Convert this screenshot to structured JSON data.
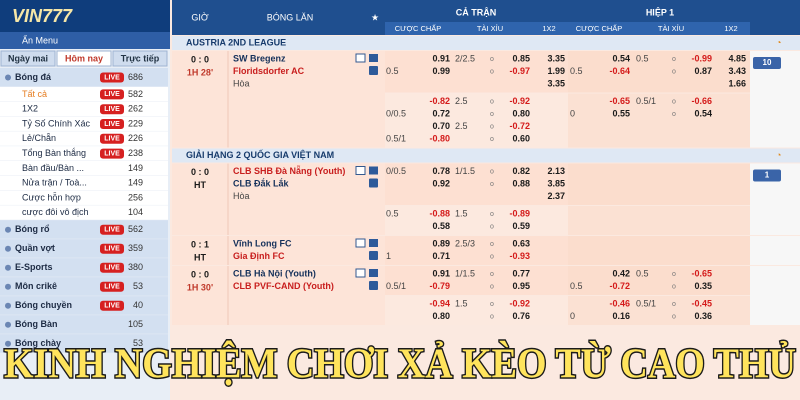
{
  "sidebar": {
    "logo": "VIN777",
    "hide_menu": "Ẩn Menu",
    "tabs": [
      "Ngày mai",
      "Hôm nay",
      "Trực tiếp"
    ],
    "active_tab": 1,
    "items": [
      {
        "label": "Bóng đá",
        "badge": "LIVE",
        "count": 686,
        "main": true
      },
      {
        "label": "Tất cả",
        "badge": "LIVE",
        "count": 582,
        "main": false,
        "active": true
      },
      {
        "label": "1X2",
        "badge": "LIVE",
        "count": 262,
        "main": false
      },
      {
        "label": "Tỷ Số Chính Xác",
        "badge": "LIVE",
        "count": 229,
        "main": false
      },
      {
        "label": "Lẻ/Chẵn",
        "badge": "LIVE",
        "count": 226,
        "main": false
      },
      {
        "label": "Tổng Bàn thắng",
        "badge": "LIVE",
        "count": 238,
        "main": false
      },
      {
        "label": "Bàn đầu/Bàn ...",
        "count": 149,
        "main": false
      },
      {
        "label": "Nửa trận / Toà...",
        "count": 149,
        "main": false
      },
      {
        "label": "Cược hỗn hợp",
        "count": 256,
        "main": false
      },
      {
        "label": "cược đôi vô địch",
        "count": 104,
        "main": false
      },
      {
        "label": "Bóng rổ",
        "badge": "LIVE",
        "count": 562,
        "main": true
      },
      {
        "label": "Quần vợt",
        "badge": "LIVE",
        "count": 359,
        "main": true
      },
      {
        "label": "E-Sports",
        "badge": "LIVE",
        "count": 380,
        "main": true
      },
      {
        "label": "Môn crikê",
        "badge": "LIVE",
        "count": 53,
        "main": true
      },
      {
        "label": "Bóng chuyền",
        "badge": "LIVE",
        "count": 40,
        "main": true
      },
      {
        "label": "Bóng Bàn",
        "count": 105,
        "main": true
      },
      {
        "label": "Bóng chày",
        "count": 53,
        "main": true
      }
    ]
  },
  "table": {
    "headers": {
      "time": "GIỜ",
      "match": "BÓNG LĂN",
      "full": "CẢ TRẬN",
      "half": "HIỆP 1",
      "sub": [
        "CƯỢC CHẤP",
        "TÀI XỈU",
        "1X2"
      ]
    },
    "sections": [
      {
        "league": "AUSTRIA 2ND LEAGUE",
        "matches": [
          {
            "score": "0 : 0",
            "time": "1H 28'",
            "teams": [
              "SW Bregenz",
              "Floridsdorfer AC",
              "Hòa"
            ],
            "favorite": 1,
            "more": "10",
            "blocks": [
              [
                [
                  null,
                  "0.91",
                  "2/2.5",
                  "0.85",
                  "3.35",
                  null,
                  "0.54",
                  "0.5",
                  "-0.99",
                  "4.85"
                ],
                [
                  "0.5",
                  "0.99",
                  null,
                  "-0.97",
                  "1.99",
                  "0.5",
                  "-0.64",
                  null,
                  "0.87",
                  "3.43"
                ],
                [
                  null,
                  null,
                  null,
                  null,
                  "3.35",
                  null,
                  null,
                  null,
                  null,
                  "1.66"
                ]
              ],
              [
                [
                  null,
                  "-0.82",
                  "2.5",
                  "-0.92",
                  null,
                  null,
                  "-0.65",
                  "0.5/1",
                  "-0.66",
                  null
                ],
                [
                  "0/0.5",
                  "0.72",
                  null,
                  "0.80",
                  null,
                  "0",
                  "0.55",
                  null,
                  "0.54",
                  null
                ],
                [
                  null,
                  "0.70",
                  "2.5",
                  "-0.72",
                  null,
                  null,
                  null,
                  null,
                  null,
                  null
                ],
                [
                  "0.5/1",
                  "-0.80",
                  null,
                  "0.60",
                  null,
                  null,
                  null,
                  null,
                  null,
                  null
                ]
              ]
            ]
          }
        ]
      },
      {
        "league": "GIẢI HẠNG 2 QUỐC GIA VIỆT NAM",
        "matches": [
          {
            "score": "0 : 0",
            "time": "HT",
            "teams": [
              "CLB SHB Đà Nẵng (Youth)",
              "CLB Đắk Lắk",
              "Hòa"
            ],
            "favorite": 0,
            "more": "1",
            "blocks": [
              [
                [
                  "0/0.5",
                  "0.78",
                  "1/1.5",
                  "0.82",
                  "2.13",
                  null,
                  null,
                  null,
                  null,
                  null
                ],
                [
                  null,
                  "0.92",
                  null,
                  "0.88",
                  "3.85",
                  null,
                  null,
                  null,
                  null,
                  null
                ],
                [
                  null,
                  null,
                  null,
                  null,
                  "2.37",
                  null,
                  null,
                  null,
                  null,
                  null
                ]
              ],
              [
                [
                  "0.5",
                  "-0.88",
                  "1.5",
                  "-0.89",
                  null,
                  null,
                  null,
                  null,
                  null,
                  null
                ],
                [
                  null,
                  "0.58",
                  null,
                  "0.59",
                  null,
                  null,
                  null,
                  null,
                  null,
                  null
                ]
              ]
            ]
          },
          {
            "score": "0 : 1",
            "time": "HT",
            "teams": [
              "Vĩnh Long FC",
              "Gia Định FC"
            ],
            "favorite": 1,
            "blocks": [
              [
                [
                  null,
                  "0.89",
                  "2.5/3",
                  "0.63",
                  null,
                  null,
                  null,
                  null,
                  null,
                  null
                ],
                [
                  "1",
                  "0.71",
                  null,
                  "-0.93",
                  null,
                  null,
                  null,
                  null,
                  null,
                  null
                ]
              ]
            ]
          },
          {
            "score": "0 : 0",
            "time": "1H 30'",
            "teams": [
              "CLB Hà Nội (Youth)",
              "CLB PVF-CAND (Youth)"
            ],
            "favorite": 1,
            "blocks": [
              [
                [
                  null,
                  "0.91",
                  "1/1.5",
                  "0.77",
                  null,
                  null,
                  "0.42",
                  "0.5",
                  "-0.65",
                  null
                ],
                [
                  "0.5/1",
                  "-0.79",
                  null,
                  "0.95",
                  null,
                  "0.5",
                  "-0.72",
                  null,
                  "0.35",
                  null
                ]
              ],
              [
                [
                  null,
                  "-0.94",
                  "1.5",
                  "-0.92",
                  null,
                  null,
                  "-0.46",
                  "0.5/1",
                  "-0.45",
                  null
                ],
                [
                  null,
                  "0.80",
                  null,
                  "0.76",
                  null,
                  "0",
                  "0.16",
                  null,
                  "0.36",
                  null
                ]
              ]
            ]
          }
        ]
      }
    ]
  },
  "banner": "KINH NGHIỆM CHƠI XẢ KÈO TỪ CAO THỦ"
}
